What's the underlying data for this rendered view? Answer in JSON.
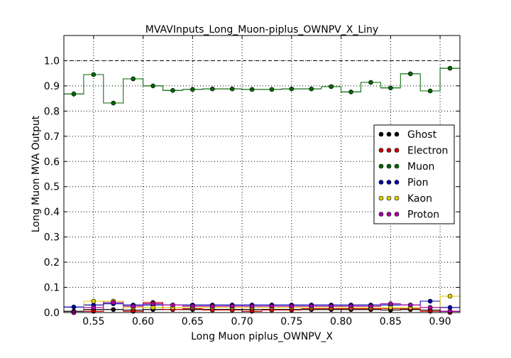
{
  "chart_data": {
    "type": "scatter",
    "title": "MVAVInputs_Long_Muon-piplus_OWNPV_X_Liny",
    "xlabel": "Long Muon piplus_OWNPV_X",
    "ylabel": "Long Muon MVA Output",
    "xlim": [
      0.52,
      0.92
    ],
    "ylim": [
      0.0,
      1.1
    ],
    "xticks": [
      "0.55",
      "0.60",
      "0.65",
      "0.70",
      "0.75",
      "0.80",
      "0.85",
      "0.90"
    ],
    "yticks": [
      "0.0",
      "0.1",
      "0.2",
      "0.3",
      "0.4",
      "0.5",
      "0.6",
      "0.7",
      "0.8",
      "0.9",
      "1.0"
    ],
    "grid": true,
    "reference_line": 1.0,
    "legend_position": "center-right",
    "x": [
      0.53,
      0.55,
      0.57,
      0.59,
      0.61,
      0.63,
      0.65,
      0.67,
      0.69,
      0.71,
      0.73,
      0.75,
      0.77,
      0.79,
      0.81,
      0.83,
      0.85,
      0.87,
      0.89,
      0.91
    ],
    "bin_half_width": 0.01,
    "series": [
      {
        "name": "Ghost",
        "color": "#000000",
        "values": [
          0.005,
          0.012,
          0.012,
          0.01,
          0.012,
          0.012,
          0.012,
          0.012,
          0.012,
          0.012,
          0.012,
          0.012,
          0.012,
          0.012,
          0.012,
          0.012,
          0.01,
          0.012,
          0.01,
          0.005
        ]
      },
      {
        "name": "Electron",
        "color": "#cc0000",
        "values": [
          0.0,
          0.005,
          0.045,
          0.005,
          0.04,
          0.012,
          0.015,
          0.01,
          0.01,
          0.005,
          0.01,
          0.01,
          0.015,
          0.015,
          0.015,
          0.015,
          0.015,
          0.015,
          0.005,
          0.0
        ]
      },
      {
        "name": "Muon",
        "color": "#006600",
        "values": [
          0.868,
          0.945,
          0.832,
          0.928,
          0.9,
          0.882,
          0.886,
          0.888,
          0.888,
          0.886,
          0.886,
          0.888,
          0.888,
          0.897,
          0.876,
          0.914,
          0.892,
          0.948,
          0.88,
          0.97
        ],
        "errors": [
          0.012,
          0.005,
          0.004,
          0.003,
          0.003,
          0.002,
          0.002,
          0.002,
          0.002,
          0.002,
          0.002,
          0.002,
          0.002,
          0.002,
          0.003,
          0.003,
          0.004,
          0.004,
          0.006,
          0.004
        ]
      },
      {
        "name": "Pion",
        "color": "#0000aa",
        "values": [
          0.022,
          0.03,
          0.035,
          0.03,
          0.03,
          0.03,
          0.03,
          0.03,
          0.03,
          0.03,
          0.03,
          0.03,
          0.03,
          0.03,
          0.03,
          0.03,
          0.03,
          0.03,
          0.045,
          0.02
        ]
      },
      {
        "name": "Kaon",
        "color": "#ddcc00",
        "values": [
          0.0,
          0.045,
          0.045,
          0.02,
          0.02,
          0.02,
          0.02,
          0.02,
          0.02,
          0.02,
          0.02,
          0.02,
          0.02,
          0.02,
          0.02,
          0.02,
          0.02,
          0.02,
          0.02,
          0.065
        ]
      },
      {
        "name": "Proton",
        "color": "#aa00aa",
        "values": [
          0.0,
          0.02,
          0.04,
          0.025,
          0.035,
          0.03,
          0.025,
          0.025,
          0.025,
          0.025,
          0.025,
          0.025,
          0.025,
          0.025,
          0.025,
          0.025,
          0.035,
          0.03,
          0.02,
          0.005
        ]
      }
    ]
  }
}
